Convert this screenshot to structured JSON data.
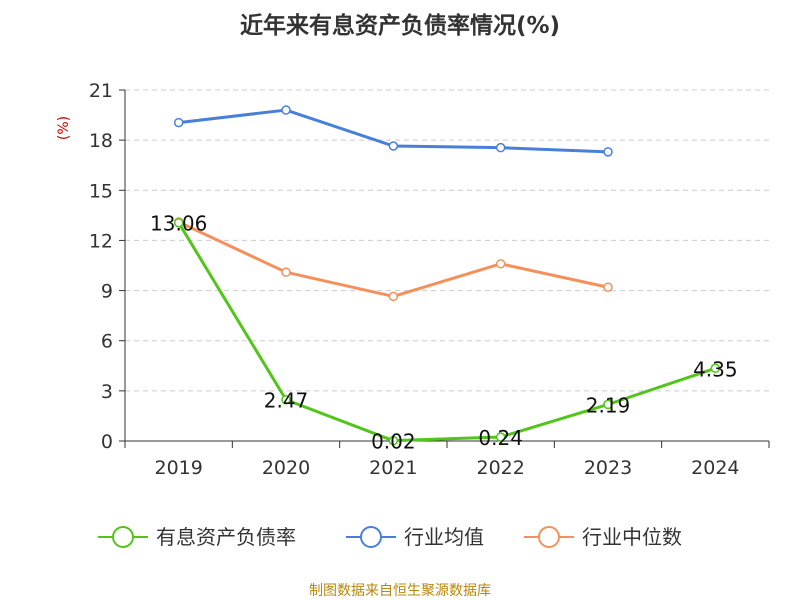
{
  "chart_data": {
    "type": "line",
    "title": "近年来有息资产负债率情况(%)",
    "ylabel": "(%)",
    "xlabel": "",
    "categories": [
      "2019",
      "2020",
      "2021",
      "2022",
      "2023",
      "2024"
    ],
    "ylim": [
      0,
      21
    ],
    "yticks": [
      "0",
      "3",
      "6",
      "9",
      "12",
      "15",
      "18",
      "21"
    ],
    "grid": true,
    "legend_position": "bottom",
    "series": [
      {
        "name": "有息资产负债率",
        "color": "#52c41a",
        "values": [
          13.06,
          2.47,
          0.02,
          0.24,
          2.19,
          4.35
        ],
        "labels": [
          "13.06",
          "2.47",
          "0.02",
          "0.24",
          "2.19",
          "4.35"
        ]
      },
      {
        "name": "行业均值",
        "color": "#4a7fd9",
        "values": [
          19.05,
          19.8,
          17.65,
          17.55,
          17.3,
          null
        ]
      },
      {
        "name": "行业中位数",
        "color": "#f5905a",
        "values": [
          13.1,
          10.1,
          8.65,
          10.6,
          9.2,
          null
        ]
      }
    ]
  },
  "source": "制图数据来自恒生聚源数据库"
}
